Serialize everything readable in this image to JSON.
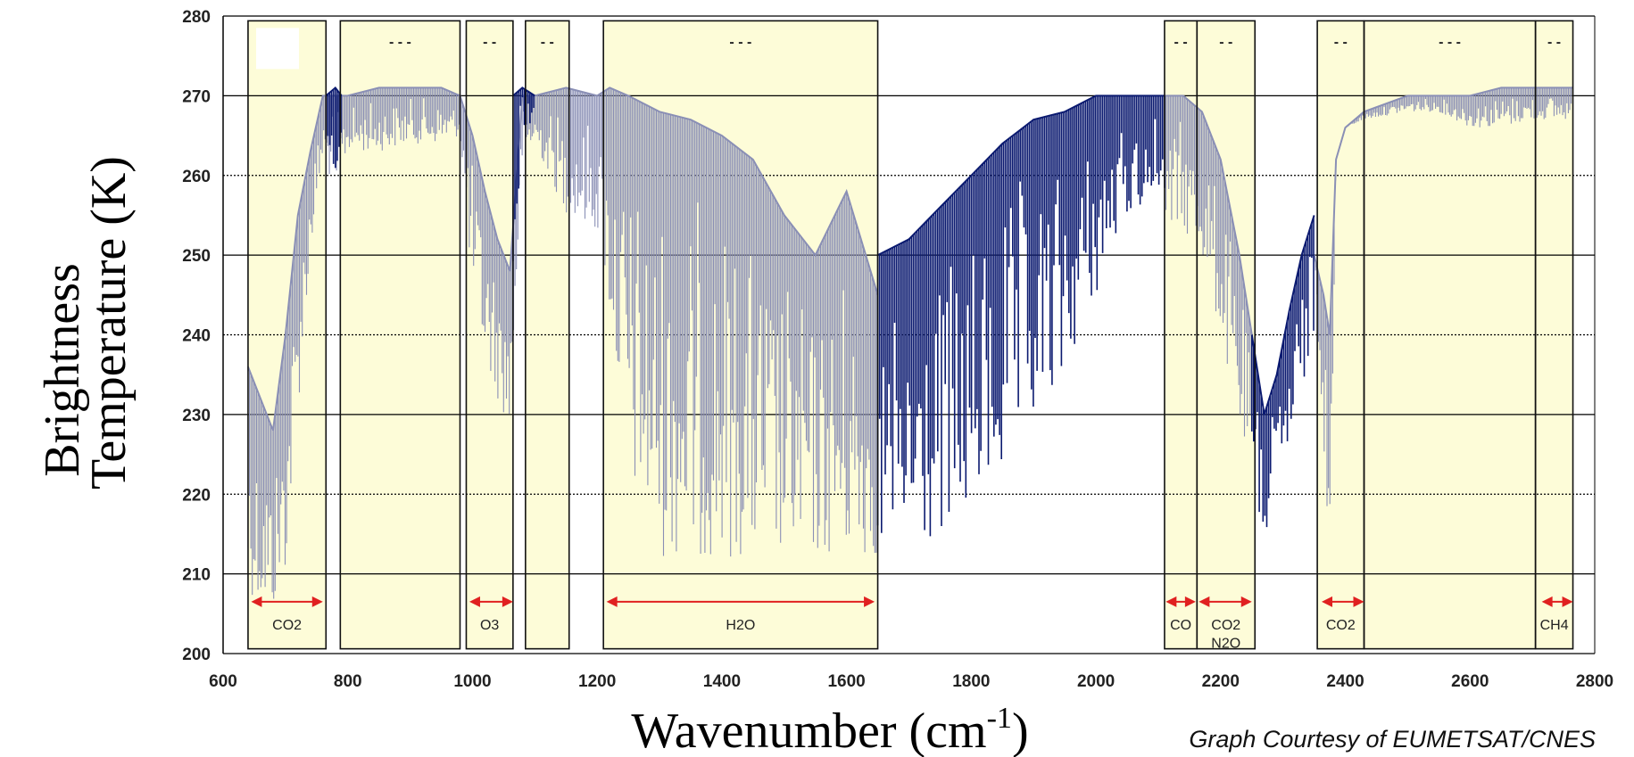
{
  "chart_data": {
    "type": "line",
    "title": "",
    "xlabel": "Wavenumber (cm",
    "xlabel_superscript": "-1",
    "xlabel_suffix": ")",
    "ylabel_line1": "Brightness",
    "ylabel_line2": "Temperature (K)",
    "xlim": [
      600,
      2800
    ],
    "ylim": [
      200,
      280
    ],
    "x_ticks": [
      600,
      800,
      1000,
      1200,
      1400,
      1600,
      1800,
      2000,
      2200,
      2400,
      2600,
      2800
    ],
    "y_ticks": [
      200,
      210,
      220,
      230,
      240,
      250,
      260,
      270,
      280
    ],
    "grid": true,
    "credit": "Graph Courtesy of EUMETSAT/CNES",
    "colors": {
      "spectrum_light": "#8a8fb5",
      "spectrum_dark": "#0b1a70",
      "band_fill": "#fdfcd8",
      "arrow": "#e02020",
      "grid": "#000000"
    },
    "bands": [
      {
        "x0": 640,
        "x1": 765,
        "label": "CO2",
        "arrow": [
          645,
          760
        ]
      },
      {
        "x0": 788,
        "x1": 980,
        "label": "",
        "arrow": null
      },
      {
        "x0": 990,
        "x1": 1065,
        "label": "O3",
        "arrow": [
          995,
          1065
        ]
      },
      {
        "x0": 1085,
        "x1": 1155,
        "label": "",
        "arrow": null
      },
      {
        "x0": 1210,
        "x1": 1650,
        "label": "H2O",
        "arrow": [
          1215,
          1645
        ]
      },
      {
        "x0": 2110,
        "x1": 2162,
        "label": "CO",
        "arrow": [
          2112,
          2160
        ]
      },
      {
        "x0": 2162,
        "x1": 2255,
        "label": "CO2",
        "label2": "N2O",
        "arrow": [
          2165,
          2250
        ]
      },
      {
        "x0": 2355,
        "x1": 2430,
        "label": "CO2",
        "arrow": [
          2362,
          2430
        ]
      },
      {
        "x0": 2430,
        "x1": 2705,
        "label": "",
        "arrow": null
      },
      {
        "x0": 2705,
        "x1": 2765,
        "label": "CH4",
        "arrow": [
          2715,
          2765
        ]
      }
    ],
    "series": [
      {
        "style": "light",
        "segments": [
          {
            "x": [
              640,
              660,
              680,
              700,
              720,
              740,
              760,
              780,
              800,
              850,
              900,
              950,
              980,
              1000,
              1020,
              1040,
              1060,
              1080,
              1100,
              1150,
              1200,
              1220,
              1250,
              1300,
              1350,
              1400,
              1450,
              1500,
              1550,
              1600,
              1650
            ],
            "y_high": [
              236,
              232,
              228,
              240,
              255,
              263,
              270,
              270,
              270,
              271,
              271,
              271,
              270,
              265,
              258,
              252,
              248,
              270,
              270,
              271,
              270,
              271,
              270,
              268,
              267,
              265,
              262,
              255,
              250,
              258,
              245
            ],
            "y_low": [
              208,
              206,
              205,
              210,
              230,
              250,
              262,
              258,
              263,
              263,
              264,
              264,
              265,
              245,
              237,
              232,
              228,
              262,
              264,
              255,
              253,
              242,
              222,
              212,
              212,
              212,
              212,
              212,
              212,
              212,
              212
            ]
          },
          {
            "x": [
              2110,
              2140,
              2170,
              2200,
              2230,
              2250
            ],
            "y_high": [
              270,
              270,
              268,
              262,
              250,
              240
            ],
            "y_low": [
              253,
              253,
              250,
              240,
              228,
              222
            ]
          },
          {
            "x": [
              2350,
              2365,
              2375,
              2385,
              2400,
              2430,
              2500,
              2550,
              2600,
              2650,
              2700,
              2765
            ],
            "y_high": [
              250,
              245,
              240,
              262,
              266,
              268,
              270,
              270,
              270,
              271,
              271,
              271
            ],
            "y_low": [
              250,
              226,
              207,
              262,
              266,
              267,
              268,
              268,
              266,
              266,
              267,
              267
            ]
          }
        ]
      },
      {
        "style": "dark",
        "segments": [
          {
            "x": [
              765,
              780,
              790
            ],
            "y_high": [
              270,
              271,
              270
            ],
            "y_low": [
              265,
              260,
              264
            ]
          },
          {
            "x": [
              1065,
              1080,
              1100
            ],
            "y_high": [
              270,
              271,
              270
            ],
            "y_low": [
              248,
              264,
              266
            ]
          },
          {
            "x": [
              1650,
              1700,
              1750,
              1800,
              1850,
              1900,
              1950,
              2000,
              2050,
              2110
            ],
            "y_high": [
              250,
              252,
              256,
              260,
              264,
              267,
              268,
              270,
              270,
              270
            ],
            "y_low": [
              212,
              212,
              214,
              218,
              222,
              228,
              235,
              245,
              255,
              258
            ]
          },
          {
            "x": [
              2250,
              2270,
              2290,
              2310,
              2330,
              2350
            ],
            "y_high": [
              240,
              230,
              235,
              243,
              250,
              255
            ],
            "y_low": [
              218,
              214,
              220,
              225,
              232,
              240
            ]
          }
        ]
      }
    ]
  }
}
